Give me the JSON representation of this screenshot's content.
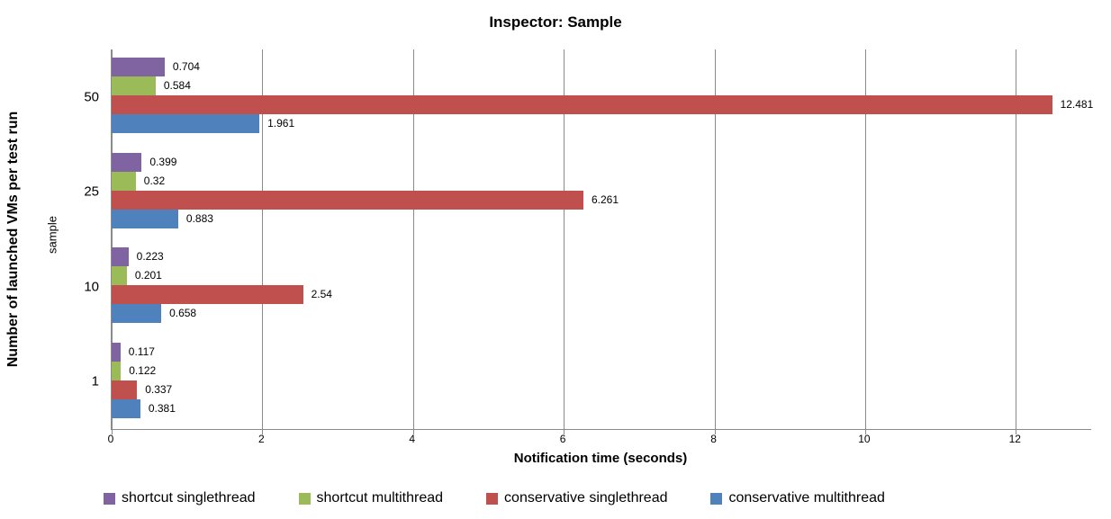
{
  "chart_data": {
    "type": "bar",
    "orientation": "horizontal",
    "title": "Inspector: Sample",
    "xlabel": "Notification time (seconds)",
    "ylabel": "Number of launched VMs per test run",
    "ylabel_inner": "sample",
    "categories": [
      "50",
      "25",
      "10",
      "1"
    ],
    "series": [
      {
        "name": "shortcut singlethread",
        "color": "#8064A2",
        "values": [
          0.704,
          0.399,
          0.223,
          0.117
        ],
        "labels": [
          "0.704",
          "0.399",
          "0.223",
          "0.117"
        ]
      },
      {
        "name": "shortcut multithread",
        "color": "#9BBB59",
        "values": [
          0.584,
          0.32,
          0.201,
          0.122
        ],
        "labels": [
          "0.584",
          "0.32",
          "0.201",
          "0.122"
        ]
      },
      {
        "name": "conservative singlethread",
        "color": "#C0504D",
        "values": [
          12.481,
          6.261,
          2.54,
          0.337
        ],
        "labels": [
          "12.481",
          "6.261",
          "2.54",
          "0.337"
        ]
      },
      {
        "name": "conservative multithread",
        "color": "#4F81BD",
        "values": [
          1.961,
          0.883,
          0.658,
          0.381
        ],
        "labels": [
          "1.961",
          "0.883",
          "0.658",
          "0.381"
        ]
      }
    ],
    "xlim": [
      0,
      13
    ],
    "xticks": [
      "0",
      "2",
      "4",
      "6",
      "8",
      "10",
      "12"
    ],
    "grid": true,
    "legend_position": "bottom",
    "axis_color": "#8A8A8A",
    "gridline_color": "#8A8A8A",
    "background_color": "#FFFFFF"
  }
}
